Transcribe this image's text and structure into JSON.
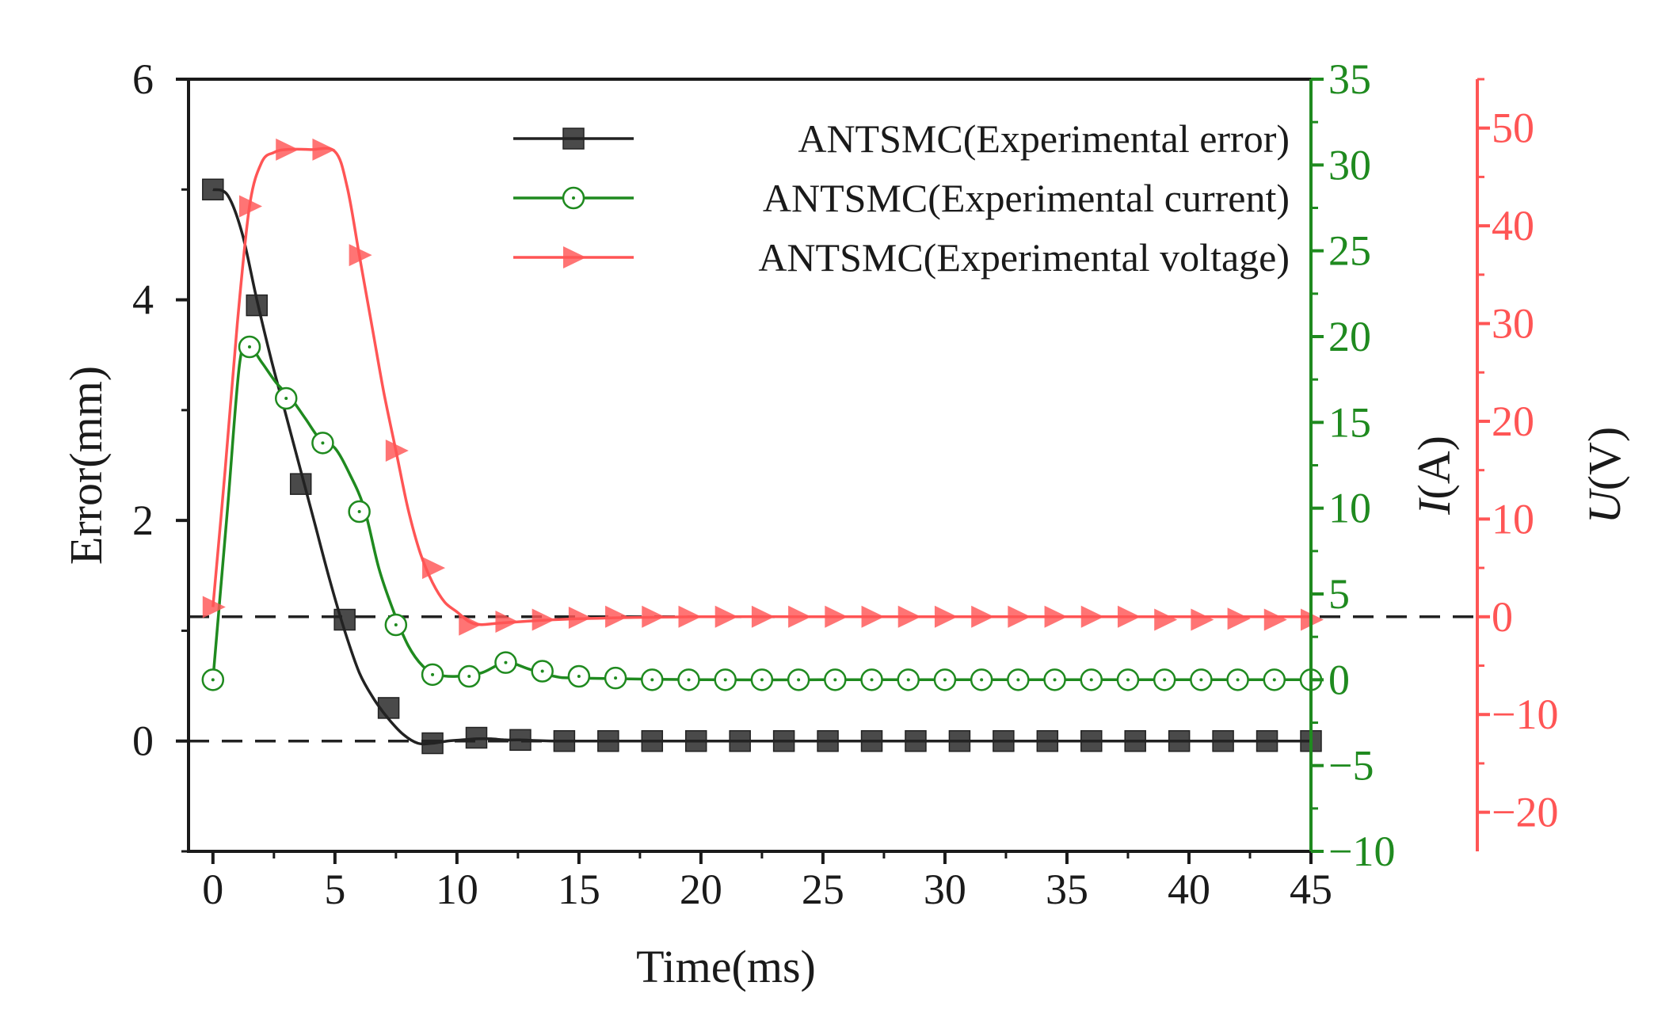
{
  "chart_data": {
    "type": "line",
    "title": "",
    "xlabel": "Time(ms)",
    "ylabel": "Error(mm)",
    "xlim": [
      -1,
      45
    ],
    "ylim": [
      -1,
      6
    ],
    "xticks": [
      0,
      5,
      10,
      15,
      20,
      25,
      30,
      35,
      40,
      45
    ],
    "yticks": [
      0,
      2,
      4,
      6
    ],
    "secondary_axes": [
      {
        "id": "current",
        "label_italic": "I",
        "label_rest": "(A)",
        "color": "#1f8a1f",
        "ylim": [
          -10,
          35
        ],
        "ticks": [
          -10,
          -5,
          0,
          5,
          10,
          15,
          20,
          25,
          30,
          35
        ]
      },
      {
        "id": "voltage",
        "label_italic": "U",
        "label_rest": "(V)",
        "color": "#ff5555",
        "ylim": [
          -24,
          55
        ],
        "ticks": [
          -20,
          -10,
          0,
          10,
          20,
          30,
          40,
          50
        ]
      }
    ],
    "reference_lines": [
      {
        "axis": "left",
        "value": 0
      },
      {
        "axis": "voltage",
        "value": 0
      }
    ],
    "legend_position": "top-right",
    "series": [
      {
        "name": "ANTSMC(Experimental error)",
        "axis": "left",
        "color": "#222222",
        "marker": "square",
        "x": [
          0,
          0.6,
          1.2,
          1.8,
          2.4,
          3,
          3.6,
          4.2,
          4.8,
          5.4,
          6,
          6.6,
          7.2,
          7.8,
          8.4,
          9,
          9.6,
          10.2,
          10.8,
          11.4,
          12,
          12.6,
          14,
          16,
          18,
          20,
          25,
          30,
          35,
          40,
          45
        ],
        "y": [
          5.0,
          4.95,
          4.6,
          4.0,
          3.45,
          2.95,
          2.45,
          1.95,
          1.45,
          1.0,
          0.62,
          0.38,
          0.2,
          0.06,
          -0.02,
          -0.02,
          0.0,
          0.01,
          0.02,
          0.02,
          0.01,
          0.01,
          0.0,
          0.0,
          0.0,
          0.0,
          0.0,
          0.0,
          0.0,
          0.0,
          0.0
        ],
        "marker_x": [
          0,
          1.8,
          3.6,
          5.4,
          7.2,
          9,
          10.8,
          12.6,
          14.4,
          16.2,
          18,
          19.8,
          21.6,
          23.4,
          25.2,
          27,
          28.8,
          30.6,
          32.4,
          34.2,
          36,
          37.8,
          39.6,
          41.4,
          43.2,
          45
        ],
        "marker_y": [
          5.0,
          3.95,
          2.33,
          1.1,
          0.3,
          -0.02,
          0.03,
          0.01,
          0.0,
          0.0,
          0.0,
          0.0,
          0.0,
          0.0,
          0.0,
          0.0,
          0.0,
          0.0,
          0.0,
          0.0,
          0.0,
          0.0,
          0.0,
          0.0,
          0.0,
          0.0
        ]
      },
      {
        "name": "ANTSMC(Experimental current)",
        "axis": "current",
        "color": "#1f8a1f",
        "marker": "circle-open",
        "x": [
          0,
          0.6,
          1.1,
          1.5,
          2.0,
          2.6,
          3.2,
          3.8,
          4.4,
          5.0,
          5.6,
          6.2,
          6.8,
          7.4,
          8.0,
          8.6,
          9.2,
          10.0,
          11.0,
          12.0,
          13.0,
          14.0,
          15,
          20,
          25,
          30,
          35,
          40,
          45
        ],
        "y": [
          0,
          10,
          18.5,
          19.4,
          18.5,
          17.3,
          16.4,
          15.2,
          14.0,
          13.5,
          12.0,
          10.0,
          6.5,
          4.0,
          2.0,
          0.8,
          0.3,
          0.2,
          0.4,
          1.0,
          0.6,
          0.2,
          0.1,
          0.0,
          0.0,
          0.0,
          0.0,
          0.0,
          0.0
        ],
        "marker_x": [
          0,
          1.5,
          3.0,
          4.5,
          6.0,
          7.5,
          9.0,
          10.5,
          12.0,
          13.5,
          15.0,
          16.5,
          18.0,
          19.5,
          21.0,
          22.5,
          24.0,
          25.5,
          27.0,
          28.5,
          30.0,
          31.5,
          33.0,
          34.5,
          36.0,
          37.5,
          39.0,
          40.5,
          42.0,
          43.5,
          45.0
        ],
        "marker_y": [
          0,
          19.4,
          16.4,
          13.8,
          9.8,
          3.2,
          0.3,
          0.2,
          1.0,
          0.5,
          0.2,
          0.1,
          0.0,
          0.0,
          0.0,
          0.0,
          0.0,
          0.0,
          0.0,
          0.0,
          0.0,
          0.0,
          0.0,
          0.0,
          0.0,
          0.0,
          0.0,
          0.0,
          0.0,
          0.0,
          0.0
        ]
      },
      {
        "name": "ANTSMC(Experimental voltage)",
        "axis": "voltage",
        "color": "#ff5555",
        "marker": "triangle-right",
        "x": [
          0,
          0.5,
          1.0,
          1.5,
          2.0,
          2.5,
          3.0,
          4.0,
          5.0,
          5.5,
          6.0,
          6.5,
          7.0,
          7.5,
          8.0,
          8.5,
          9.0,
          9.5,
          10.0,
          10.5,
          11.0,
          12,
          15,
          20,
          25,
          30,
          35,
          40,
          45
        ],
        "y": [
          1.0,
          15,
          30,
          42,
          46.5,
          47.5,
          47.8,
          47.8,
          47.6,
          44,
          37,
          30,
          23,
          17,
          11,
          6.5,
          3.5,
          1.5,
          0.5,
          -0.5,
          -0.8,
          -0.6,
          -0.2,
          0,
          0,
          0,
          0,
          0,
          0
        ],
        "marker_x": [
          0,
          1.5,
          3.0,
          4.5,
          6.0,
          7.5,
          9.0,
          10.5,
          12.0,
          13.5,
          15.0,
          16.5,
          18.0,
          19.5,
          21.0,
          22.5,
          24.0,
          25.5,
          27.0,
          28.5,
          30.0,
          31.5,
          33.0,
          34.5,
          36.0,
          37.5,
          39.0,
          40.5,
          42.0,
          43.5,
          45.0
        ],
        "marker_y": [
          1.0,
          42.0,
          47.8,
          47.8,
          37.0,
          17.0,
          5.0,
          -0.8,
          -0.5,
          -0.3,
          -0.1,
          0.0,
          0.0,
          0.0,
          0.0,
          0.0,
          0.0,
          0.0,
          0.0,
          0.0,
          0.0,
          0.0,
          0.0,
          0.0,
          0.0,
          0.0,
          -0.3,
          -0.3,
          -0.2,
          -0.3,
          -0.3
        ]
      }
    ]
  }
}
